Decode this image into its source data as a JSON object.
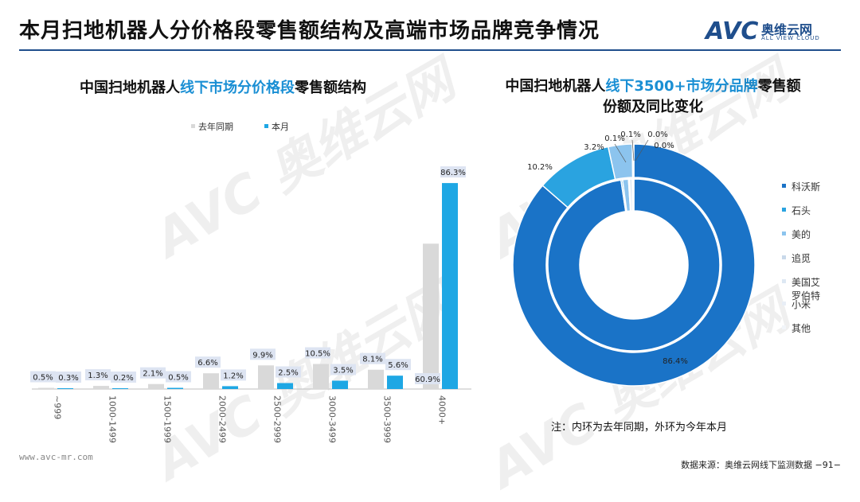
{
  "header": {
    "title": "本月扫地机器人分价格段零售额结构及高端市场品牌竞争情况",
    "logo_main": "AVC",
    "logo_cn": "奥维云网",
    "logo_en": "ALL VIEW CLOUD"
  },
  "left_chart": {
    "title_pre": "中国扫地机器人",
    "title_hl": "线下市场分价格段",
    "title_post": "零售额结构"
  },
  "right_chart": {
    "title_pre": "中国扫地机器人",
    "title_hl": "线下3500+市场分品牌",
    "title_post": "零售额",
    "title_line2": "份额及同比变化"
  },
  "note": "注：内环为去年同期，外环为今年本月",
  "footer": {
    "left": "www.avc-mr.com",
    "right": "数据来源：奥维云网线下监测数据  −91−"
  },
  "colors": {
    "accent": "#1a8fd4",
    "last_year": "#d9d9d9",
    "this_month": "#1ea7e4",
    "label_box": "#dde4f2"
  },
  "chart_data": [
    {
      "type": "bar",
      "categories": [
        "~999",
        "1000-1499",
        "1500-1999",
        "2000-2499",
        "2500-2999",
        "3000-3499",
        "3500-3999",
        "4000+"
      ],
      "series": [
        {
          "name": "去年同期",
          "values": [
            0.5,
            1.3,
            2.1,
            6.6,
            9.9,
            10.5,
            8.1,
            60.9
          ],
          "labels": [
            "0.5%",
            "1.3%",
            "2.1%",
            "6.6%",
            "9.9%",
            "10.5%",
            "8.1%",
            "60.9%"
          ],
          "color": "#d9d9d9"
        },
        {
          "name": "本月",
          "values": [
            0.3,
            0.2,
            0.5,
            1.2,
            2.5,
            3.5,
            5.6,
            86.3
          ],
          "labels": [
            "0.3%",
            "0.2%",
            "0.5%",
            "1.2%",
            "2.5%",
            "3.5%",
            "5.6%",
            "86.3%"
          ],
          "color": "#1ea7e4"
        }
      ],
      "ylim": [
        0,
        100
      ],
      "legend": "top"
    },
    {
      "type": "pie",
      "subtype": "donut-double",
      "categories": [
        "科沃斯",
        "石头",
        "美的",
        "追觅",
        "美国艾罗伯特",
        "小米",
        "其他"
      ],
      "legend_labels": [
        "科沃斯",
        "石头",
        "美的",
        "追觅",
        "美国艾\n罗伯特",
        "小米",
        "其他"
      ],
      "colors": [
        "#1a73c7",
        "#2aa3e0",
        "#8cc4ee",
        "#c9d9ea",
        "#dde8f3",
        "#e8eef6",
        "#f2f5f9"
      ],
      "outer": {
        "name": "本月",
        "values": [
          86.4,
          10.2,
          3.2,
          0.1,
          0.1,
          0.0,
          0.0
        ],
        "labels": [
          "86.4%",
          "10.2%",
          "3.2%",
          "0.1%",
          "0.1%",
          "0.0%",
          "0.0%"
        ]
      },
      "inner": {
        "name": "去年同期",
        "values": [
          97.6,
          0.3,
          1.1,
          0.2,
          0.5,
          0.2,
          0.1
        ]
      },
      "legend": "right"
    }
  ]
}
